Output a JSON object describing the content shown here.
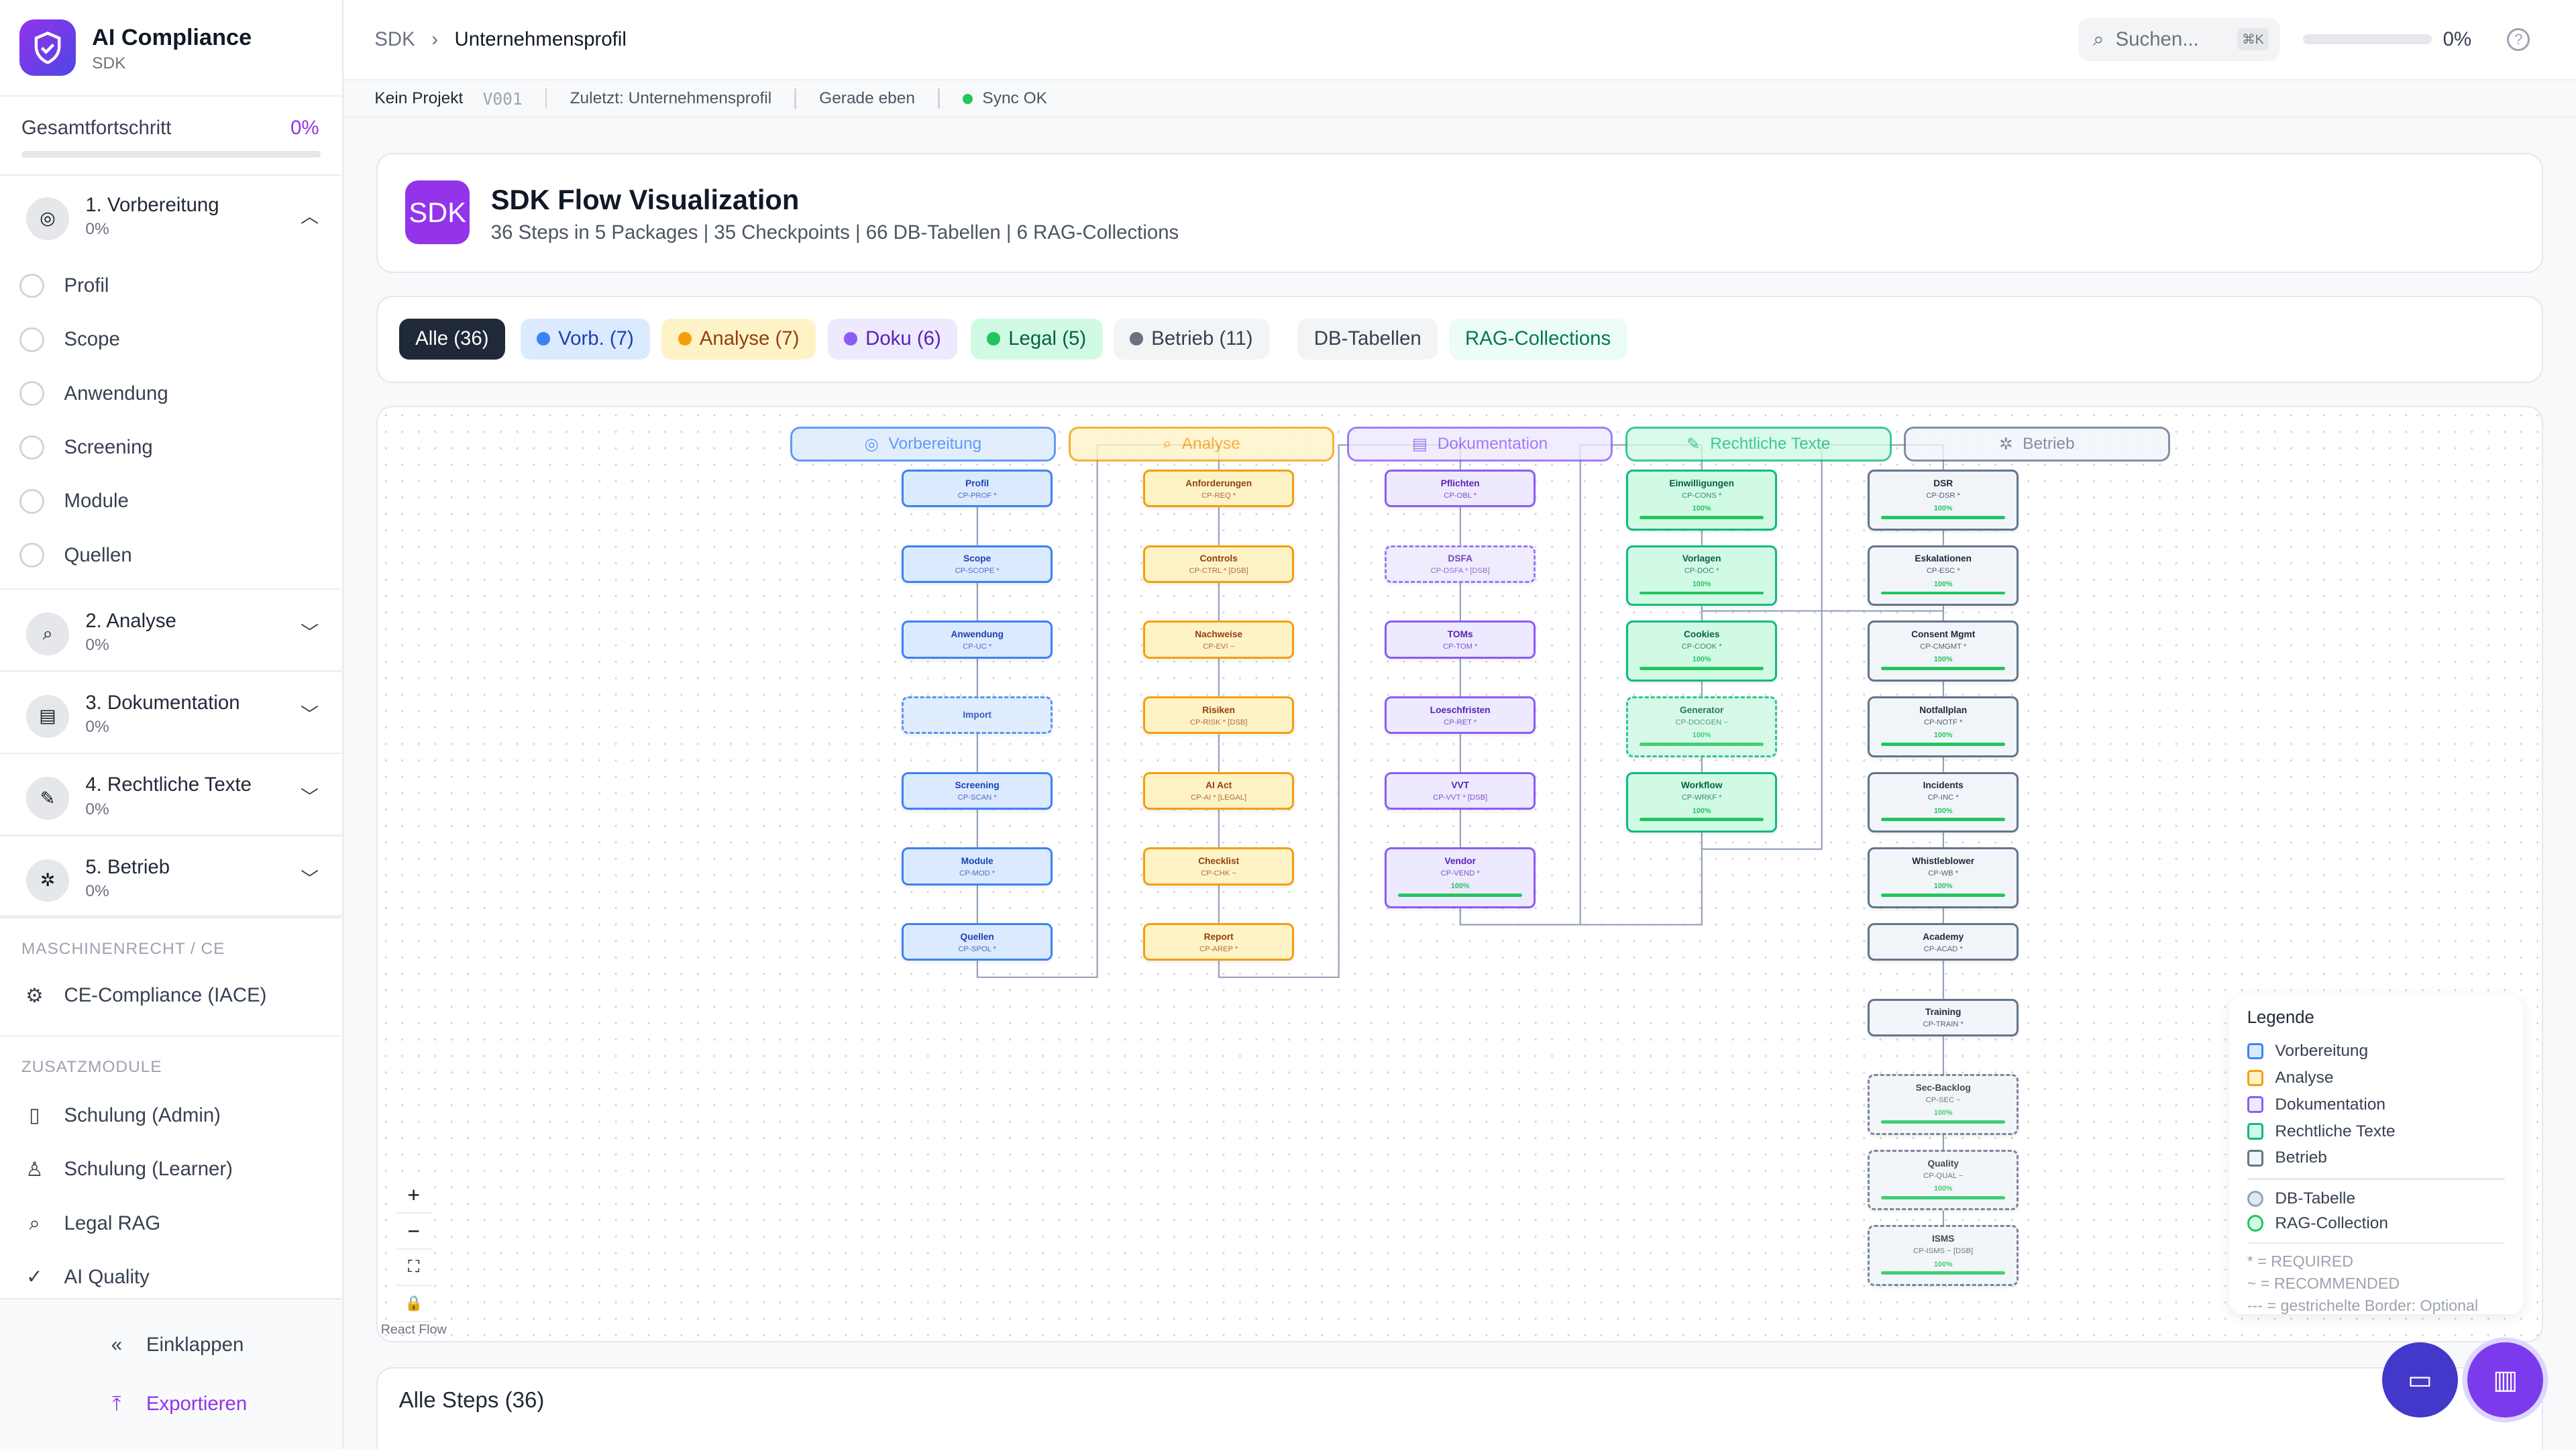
{
  "app": {
    "title": "AI Compliance",
    "subtitle": "SDK"
  },
  "sidebar": {
    "progress_label": "Gesamtfortschritt",
    "progress_value": "0%",
    "progress_fraction": 0,
    "packages": [
      {
        "label": "1. Vorbereitung",
        "pct": "0%",
        "icon": "target-icon",
        "expanded": true,
        "items": [
          "Profil",
          "Scope",
          "Anwendung",
          "Screening",
          "Module",
          "Quellen"
        ]
      },
      {
        "label": "2. Analyse",
        "pct": "0%",
        "icon": "magnifier-icon"
      },
      {
        "label": "3. Dokumentation",
        "pct": "0%",
        "icon": "clipboard-icon"
      },
      {
        "label": "4. Rechtliche Texte",
        "pct": "0%",
        "icon": "memo-icon"
      },
      {
        "label": "5. Betrieb",
        "pct": "0%",
        "icon": "gear-icon"
      }
    ],
    "section_machine": "MASCHINENRECHT / CE",
    "machine_items": [
      {
        "label": "CE-Compliance (IACE)",
        "icon": "chip-icon"
      }
    ],
    "section_extra": "ZUSATZMODULE",
    "extra_items": [
      {
        "label": "Schulung (Admin)",
        "icon": "book-icon"
      },
      {
        "label": "Schulung (Learner)",
        "icon": "user-icon"
      },
      {
        "label": "Legal RAG",
        "icon": "search-icon"
      },
      {
        "label": "AI Quality",
        "icon": "check-circle-icon"
      }
    ],
    "collapse": "Einklappen",
    "export": "Exportieren"
  },
  "topbar": {
    "crumb_root": "SDK",
    "crumb_current": "Unternehmensprofil",
    "search_placeholder": "Suchen...",
    "search_shortcut": "⌘K",
    "progress": "0%",
    "progress_fraction": 0
  },
  "status": {
    "project": "Kein Projekt",
    "version": "V001",
    "last": "Zuletzt: Unternehmensprofil",
    "time": "Gerade eben",
    "sync": "Sync OK"
  },
  "header": {
    "badge": "SDK",
    "title": "SDK Flow Visualization",
    "subtitle": "36 Steps in 5 Packages | 35 Checkpoints | 66 DB-Tabellen | 6 RAG-Collections"
  },
  "filters": [
    {
      "label": "Alle (36)",
      "active": true
    },
    {
      "label": "Vorb. (7)",
      "color": "#3b82f6"
    },
    {
      "label": "Analyse (7)",
      "color": "#f59e0b"
    },
    {
      "label": "Doku (6)",
      "color": "#8b5cf6"
    },
    {
      "label": "Legal (5)",
      "color": "#22c55e"
    },
    {
      "label": "Betrieb (11)",
      "color": "#6b7280"
    },
    {
      "label": "DB-Tabellen"
    },
    {
      "label": "RAG-Collections"
    }
  ],
  "flow": {
    "packages": [
      {
        "label": "Vorbereitung",
        "icon": "target-icon",
        "colors": {
          "bg": "#dbeafe",
          "border": "#3b82f6",
          "text": "#1e40af"
        },
        "steps": [
          {
            "label": "Profil",
            "code": "CP-PROF *"
          },
          {
            "label": "Scope",
            "code": "CP-SCOPE *"
          },
          {
            "label": "Anwendung",
            "code": "CP-UC *"
          },
          {
            "label": "Import",
            "code": "",
            "optional": true
          },
          {
            "label": "Screening",
            "code": "CP-SCAN *"
          },
          {
            "label": "Module",
            "code": "CP-MOD *"
          },
          {
            "label": "Quellen",
            "code": "CP-SPOL *"
          }
        ]
      },
      {
        "label": "Analyse",
        "icon": "magnifier-icon",
        "colors": {
          "bg": "#fef3c7",
          "border": "#f59e0b",
          "text": "#92400e"
        },
        "steps": [
          {
            "label": "Anforderungen",
            "code": "CP-REQ *"
          },
          {
            "label": "Controls",
            "code": "CP-CTRL * [DSB]"
          },
          {
            "label": "Nachweise",
            "code": "CP-EVI ~"
          },
          {
            "label": "Risiken",
            "code": "CP-RISK * [DSB]"
          },
          {
            "label": "AI Act",
            "code": "CP-AI * [LEGAL]"
          },
          {
            "label": "Checklist",
            "code": "CP-CHK ~"
          },
          {
            "label": "Report",
            "code": "CP-AREP *"
          }
        ]
      },
      {
        "label": "Dokumentation",
        "icon": "clipboard-icon",
        "colors": {
          "bg": "#ede9fe",
          "border": "#8b5cf6",
          "text": "#5b21b6"
        },
        "steps": [
          {
            "label": "Pflichten",
            "code": "CP-OBL *"
          },
          {
            "label": "DSFA",
            "code": "CP-DSFA * [DSB]",
            "optional": true
          },
          {
            "label": "TOMs",
            "code": "CP-TOM *"
          },
          {
            "label": "Loeschfristen",
            "code": "CP-RET *"
          },
          {
            "label": "VVT",
            "code": "CP-VVT * [DSB]"
          },
          {
            "label": "Vendor",
            "code": "CP-VEND *",
            "progress": "100%"
          }
        ]
      },
      {
        "label": "Rechtliche Texte",
        "icon": "memo-icon",
        "colors": {
          "bg": "#d1fae5",
          "border": "#10b981",
          "text": "#065f46"
        },
        "steps": [
          {
            "label": "Einwilligungen",
            "code": "CP-CONS *",
            "progress": "100%"
          },
          {
            "label": "Vorlagen",
            "code": "CP-DOC *",
            "progress": "100%"
          },
          {
            "label": "Cookies",
            "code": "CP-COOK *",
            "progress": "100%"
          },
          {
            "label": "Generator",
            "code": "CP-DOCGEN ~",
            "progress": "100%",
            "optional": true
          },
          {
            "label": "Workflow",
            "code": "CP-WRKF *",
            "progress": "100%"
          }
        ]
      },
      {
        "label": "Betrieb",
        "icon": "gear-icon",
        "colors": {
          "bg": "#f1f5f9",
          "border": "#64748b",
          "text": "#1f2937"
        },
        "steps": [
          {
            "label": "DSR",
            "code": "CP-DSR *",
            "progress": "100%"
          },
          {
            "label": "Eskalationen",
            "code": "CP-ESC *",
            "progress": "100%"
          },
          {
            "label": "Consent Mgmt",
            "code": "CP-CMGMT *",
            "progress": "100%"
          },
          {
            "label": "Notfallplan",
            "code": "CP-NOTF *",
            "progress": "100%"
          },
          {
            "label": "Incidents",
            "code": "CP-INC *",
            "progress": "100%"
          },
          {
            "label": "Whistleblower",
            "code": "CP-WB *",
            "progress": "100%"
          },
          {
            "label": "Academy",
            "code": "CP-ACAD *"
          },
          {
            "label": "Training",
            "code": "CP-TRAIN *"
          },
          {
            "label": "Sec-Backlog",
            "code": "CP-SEC ~",
            "progress": "100%",
            "optional": true
          },
          {
            "label": "Quality",
            "code": "CP-QUAL ~",
            "progress": "100%",
            "optional": true
          },
          {
            "label": "ISMS",
            "code": "CP-ISMS ~ [DSB]",
            "progress": "100%",
            "optional": true
          }
        ]
      }
    ],
    "extra_edges": [
      [
        "Vorlagen",
        "Consent Mgmt"
      ],
      [
        "Workflow",
        "Vendor"
      ]
    ],
    "controls": [
      "+",
      "−",
      "⛶",
      "🔒"
    ],
    "attribution": "React Flow"
  },
  "legend": {
    "title": "Legende",
    "packages": [
      "Vorbereitung",
      "Analyse",
      "Dokumentation",
      "Rechtliche Texte",
      "Betrieb"
    ],
    "types": [
      "DB-Tabelle",
      "RAG-Collection"
    ],
    "notes": [
      "* = REQUIRED",
      "~ = RECOMMENDED",
      "--- = gestrichelte Border: Optional"
    ]
  },
  "steps_section": {
    "title": "Alle Steps (36)"
  }
}
